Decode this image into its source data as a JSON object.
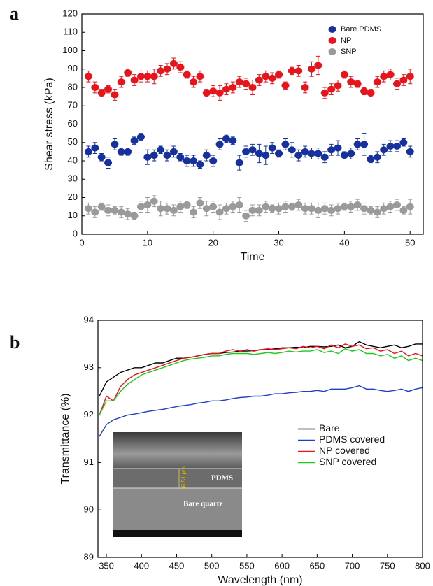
{
  "chart_data": [
    {
      "type": "scatter",
      "panel_label": "a",
      "x_label": "Time",
      "y_label": "Shear stress (kPa)",
      "x": [
        1,
        2,
        3,
        4,
        5,
        6,
        7,
        8,
        9,
        10,
        11,
        12,
        13,
        14,
        15,
        16,
        17,
        18,
        19,
        20,
        21,
        22,
        23,
        24,
        25,
        26,
        27,
        28,
        29,
        30,
        31,
        32,
        33,
        34,
        35,
        36,
        37,
        38,
        39,
        40,
        41,
        42,
        43,
        44,
        45,
        46,
        47,
        48,
        49,
        50
      ],
      "series": [
        {
          "name": "Bare PDMS",
          "color": "#16309e",
          "values": [
            45,
            47,
            42,
            39,
            49,
            45,
            45,
            51,
            53,
            42,
            43,
            46,
            43,
            45,
            42,
            40,
            40,
            38,
            43,
            40,
            49,
            52,
            51,
            39,
            45,
            46,
            44,
            43,
            47,
            44,
            49,
            46,
            43,
            45,
            44,
            44,
            42,
            46,
            47,
            43,
            44,
            49,
            49,
            41,
            42,
            46,
            48,
            48,
            50,
            45
          ],
          "errors": [
            3,
            3,
            2,
            3,
            3,
            2,
            2,
            2,
            2,
            4,
            3,
            2,
            3,
            3,
            2,
            3,
            3,
            2,
            3,
            3,
            3,
            2,
            2,
            4,
            3,
            3,
            5,
            5,
            3,
            2,
            3,
            4,
            3,
            3,
            3,
            3,
            3,
            3,
            4,
            2,
            3,
            3,
            6,
            2,
            3,
            3,
            3,
            3,
            2,
            3
          ]
        },
        {
          "name": "NP",
          "color": "#e8141c",
          "values": [
            86,
            80,
            77,
            79,
            76,
            83,
            88,
            84,
            86,
            86,
            86,
            89,
            90,
            93,
            91,
            87,
            83,
            86,
            77,
            78,
            77,
            79,
            80,
            83,
            82,
            80,
            84,
            86,
            85,
            87,
            81,
            89,
            89,
            80,
            90,
            92,
            77,
            79,
            81,
            87,
            83,
            82,
            78,
            77,
            83,
            86,
            87,
            82,
            84,
            86
          ],
          "errors": [
            3,
            3,
            2,
            2,
            3,
            3,
            2,
            3,
            3,
            3,
            4,
            3,
            3,
            3,
            3,
            2,
            3,
            3,
            2,
            3,
            4,
            3,
            3,
            3,
            3,
            4,
            3,
            3,
            3,
            2,
            2,
            2,
            3,
            3,
            4,
            5,
            3,
            3,
            3,
            2,
            3,
            2,
            2,
            2,
            3,
            3,
            3,
            3,
            3,
            4
          ]
        },
        {
          "name": "SNP",
          "color": "#9a9a9a",
          "values": [
            14,
            12,
            15,
            13,
            13,
            12,
            11,
            10,
            15,
            16,
            18,
            14,
            14,
            13,
            15,
            16,
            12,
            17,
            14,
            15,
            12,
            14,
            15,
            16,
            10,
            13,
            13,
            15,
            14,
            14,
            15,
            15,
            16,
            14,
            14,
            13,
            14,
            13,
            14,
            15,
            15,
            16,
            14,
            13,
            12,
            14,
            15,
            16,
            13,
            15
          ],
          "errors": [
            3,
            3,
            2,
            3,
            2,
            3,
            3,
            2,
            3,
            4,
            3,
            4,
            3,
            3,
            3,
            2,
            3,
            3,
            4,
            3,
            4,
            3,
            3,
            4,
            3,
            3,
            3,
            3,
            2,
            3,
            3,
            2,
            3,
            3,
            3,
            4,
            3,
            3,
            3,
            2,
            3,
            3,
            3,
            2,
            3,
            3,
            3,
            3,
            2,
            4
          ]
        }
      ],
      "xlim": [
        0,
        52
      ],
      "ylim": [
        0,
        120
      ],
      "xticks": [
        0,
        10,
        20,
        30,
        40,
        50
      ],
      "yticks": [
        0,
        10,
        20,
        30,
        40,
        50,
        60,
        70,
        80,
        90,
        100,
        110,
        120
      ],
      "grid": false,
      "legend": "upper right"
    },
    {
      "type": "line",
      "panel_label": "b",
      "x_label": "Wavelength (nm)",
      "y_label": "Transmittance (%)",
      "x": [
        340,
        350,
        360,
        370,
        380,
        390,
        400,
        410,
        420,
        430,
        440,
        450,
        460,
        470,
        480,
        490,
        500,
        510,
        520,
        530,
        540,
        550,
        560,
        570,
        580,
        590,
        600,
        610,
        620,
        630,
        640,
        650,
        660,
        670,
        680,
        690,
        700,
        710,
        720,
        730,
        740,
        750,
        760,
        770,
        780,
        790,
        800
      ],
      "series": [
        {
          "name": "Bare",
          "color": "#000000",
          "values": [
            92.4,
            92.7,
            92.8,
            92.9,
            92.95,
            93.0,
            93.0,
            93.05,
            93.1,
            93.1,
            93.15,
            93.2,
            93.2,
            93.22,
            93.25,
            93.28,
            93.3,
            93.3,
            93.32,
            93.33,
            93.35,
            93.35,
            93.36,
            93.38,
            93.38,
            93.4,
            93.42,
            93.42,
            93.43,
            93.42,
            93.45,
            93.45,
            93.44,
            93.45,
            93.48,
            93.42,
            93.45,
            93.55,
            93.48,
            93.45,
            93.42,
            93.45,
            93.48,
            93.42,
            93.45,
            93.5,
            93.5
          ]
        },
        {
          "name": "PDMS covered",
          "color": "#1f3fc4",
          "values": [
            91.55,
            91.8,
            91.9,
            91.95,
            92.0,
            92.02,
            92.05,
            92.08,
            92.1,
            92.12,
            92.15,
            92.18,
            92.2,
            92.22,
            92.25,
            92.27,
            92.3,
            92.3,
            92.32,
            92.35,
            92.37,
            92.38,
            92.4,
            92.4,
            92.42,
            92.45,
            92.45,
            92.47,
            92.48,
            92.5,
            92.5,
            92.52,
            92.5,
            92.55,
            92.55,
            92.55,
            92.58,
            92.62,
            92.55,
            92.55,
            92.52,
            92.5,
            92.52,
            92.55,
            92.5,
            92.55,
            92.58
          ]
        },
        {
          "name": "NP covered",
          "color": "#e8141c",
          "values": [
            92.0,
            92.4,
            92.3,
            92.6,
            92.75,
            92.85,
            92.9,
            92.95,
            93.0,
            93.05,
            93.1,
            93.15,
            93.2,
            93.22,
            93.25,
            93.28,
            93.3,
            93.3,
            93.35,
            93.38,
            93.35,
            93.38,
            93.35,
            93.38,
            93.4,
            93.38,
            93.4,
            93.42,
            93.4,
            93.45,
            93.42,
            93.45,
            93.4,
            93.48,
            93.42,
            93.5,
            93.45,
            93.48,
            93.4,
            93.42,
            93.35,
            93.38,
            93.3,
            93.35,
            93.25,
            93.3,
            93.25
          ]
        },
        {
          "name": "SNP covered",
          "color": "#1ec81e",
          "values": [
            92.0,
            92.3,
            92.3,
            92.5,
            92.65,
            92.75,
            92.85,
            92.9,
            92.95,
            93.0,
            93.05,
            93.1,
            93.15,
            93.18,
            93.2,
            93.22,
            93.25,
            93.25,
            93.28,
            93.3,
            93.3,
            93.3,
            93.28,
            93.3,
            93.32,
            93.3,
            93.32,
            93.35,
            93.33,
            93.35,
            93.35,
            93.38,
            93.32,
            93.35,
            93.3,
            93.4,
            93.35,
            93.38,
            93.3,
            93.3,
            93.25,
            93.28,
            93.2,
            93.25,
            93.15,
            93.2,
            93.15
          ]
        }
      ],
      "xlim": [
        338,
        800
      ],
      "ylim": [
        89,
        94
      ],
      "xticks": [
        350,
        400,
        450,
        500,
        550,
        600,
        650,
        700,
        750,
        800
      ],
      "yticks": [
        89,
        90,
        91,
        92,
        93,
        94
      ],
      "grid": false,
      "legend": "center right",
      "inset": {
        "labels": [
          "PDMS",
          "Bare quartz",
          "56.51 μm"
        ]
      }
    }
  ]
}
